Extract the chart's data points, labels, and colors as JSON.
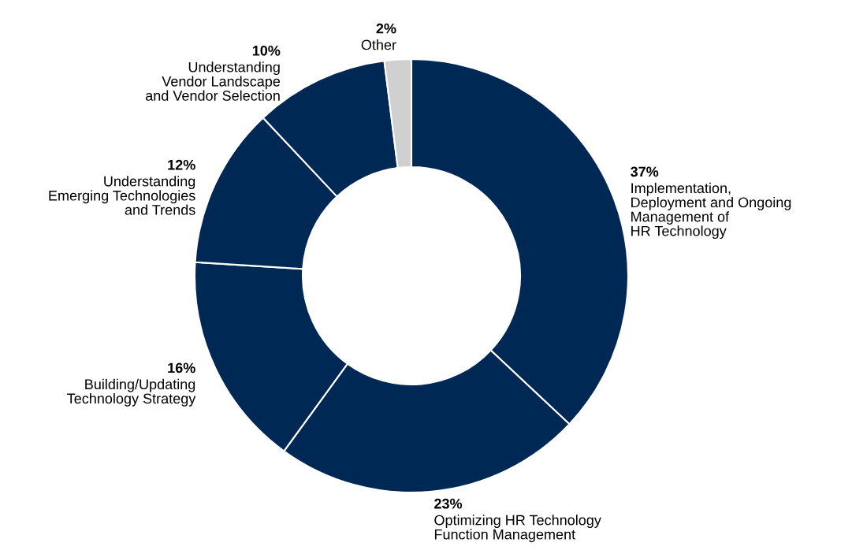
{
  "chart_data": {
    "type": "donut",
    "categories": [
      "Implementation,\nDeployment and Ongoing\nManagement of\nHR Technology",
      "Optimizing HR Technology\nFunction Management",
      "Building/Updating\nTechnology Strategy",
      "Understanding\nEmerging Technologies\nand Trends",
      "Understanding\nVendor Landscape\nand Vendor Selection",
      "Other"
    ],
    "values": [
      37,
      23,
      16,
      12,
      10,
      2
    ],
    "value_labels": [
      "37%",
      "23%",
      "16%",
      "12%",
      "10%",
      "2%"
    ],
    "colors": [
      "#002855",
      "#002855",
      "#002855",
      "#002855",
      "#002855",
      "#d0d0d0"
    ]
  }
}
